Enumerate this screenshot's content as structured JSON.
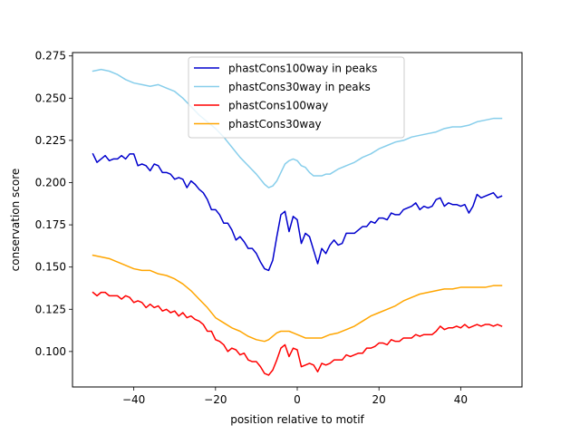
{
  "chart_data": {
    "type": "line",
    "xlabel": "position relative to motif",
    "ylabel": "conservation score",
    "xlim": [
      -55,
      55
    ],
    "ylim": [
      0.079,
      0.277
    ],
    "x_ticks": [
      -40,
      -20,
      0,
      20,
      40
    ],
    "x_tick_labels": [
      "−40",
      "−20",
      "0",
      "20",
      "40"
    ],
    "y_ticks": [
      0.1,
      0.125,
      0.15,
      0.175,
      0.2,
      0.225,
      0.25,
      0.275
    ],
    "y_tick_labels": [
      "0.100",
      "0.125",
      "0.150",
      "0.175",
      "0.200",
      "0.225",
      "0.250",
      "0.275"
    ],
    "legend_position": "upper-center",
    "series": [
      {
        "name": "phastCons100way in peaks",
        "color": "#0000cd",
        "x": [
          -50,
          -49,
          -48,
          -47,
          -46,
          -45,
          -44,
          -43,
          -42,
          -41,
          -40,
          -39,
          -38,
          -37,
          -36,
          -35,
          -34,
          -33,
          -32,
          -31,
          -30,
          -29,
          -28,
          -27,
          -26,
          -25,
          -24,
          -23,
          -22,
          -21,
          -20,
          -19,
          -18,
          -17,
          -16,
          -15,
          -14,
          -13,
          -12,
          -11,
          -10,
          -9,
          -8,
          -7,
          -6,
          -5,
          -4,
          -3,
          -2,
          -1,
          0,
          1,
          2,
          3,
          4,
          5,
          6,
          7,
          8,
          9,
          10,
          11,
          12,
          13,
          14,
          15,
          16,
          17,
          18,
          19,
          20,
          21,
          22,
          23,
          24,
          25,
          26,
          27,
          28,
          29,
          30,
          31,
          32,
          33,
          34,
          35,
          36,
          37,
          38,
          39,
          40,
          41,
          42,
          43,
          44,
          45,
          46,
          47,
          48,
          49,
          50
        ],
        "values": [
          0.217,
          0.212,
          0.214,
          0.216,
          0.213,
          0.214,
          0.214,
          0.216,
          0.214,
          0.217,
          0.217,
          0.21,
          0.211,
          0.21,
          0.207,
          0.211,
          0.21,
          0.206,
          0.206,
          0.205,
          0.202,
          0.203,
          0.202,
          0.197,
          0.201,
          0.199,
          0.196,
          0.194,
          0.19,
          0.184,
          0.184,
          0.181,
          0.176,
          0.176,
          0.172,
          0.166,
          0.168,
          0.165,
          0.161,
          0.161,
          0.158,
          0.153,
          0.149,
          0.148,
          0.154,
          0.168,
          0.181,
          0.183,
          0.171,
          0.18,
          0.178,
          0.164,
          0.17,
          0.168,
          0.16,
          0.152,
          0.161,
          0.158,
          0.163,
          0.166,
          0.163,
          0.164,
          0.17,
          0.17,
          0.17,
          0.172,
          0.174,
          0.174,
          0.177,
          0.176,
          0.179,
          0.179,
          0.178,
          0.182,
          0.181,
          0.181,
          0.184,
          0.185,
          0.186,
          0.188,
          0.184,
          0.186,
          0.185,
          0.186,
          0.19,
          0.191,
          0.186,
          0.188,
          0.187,
          0.187,
          0.186,
          0.187,
          0.182,
          0.186,
          0.193,
          0.191,
          0.192,
          0.193,
          0.194,
          0.191,
          0.192
        ]
      },
      {
        "name": "phastCons30way in peaks",
        "color": "#87ceeb",
        "x": [
          -50,
          -48,
          -46,
          -44,
          -42,
          -40,
          -38,
          -36,
          -34,
          -32,
          -30,
          -28,
          -26,
          -24,
          -22,
          -20,
          -18,
          -16,
          -14,
          -12,
          -10,
          -8,
          -7,
          -6,
          -5,
          -4,
          -3,
          -2,
          -1,
          0,
          1,
          2,
          3,
          4,
          5,
          6,
          7,
          8,
          10,
          12,
          14,
          16,
          18,
          20,
          22,
          24,
          26,
          28,
          30,
          32,
          34,
          36,
          38,
          40,
          42,
          44,
          46,
          48,
          50
        ],
        "values": [
          0.266,
          0.267,
          0.266,
          0.264,
          0.261,
          0.259,
          0.258,
          0.257,
          0.258,
          0.256,
          0.254,
          0.25,
          0.245,
          0.24,
          0.236,
          0.232,
          0.227,
          0.221,
          0.215,
          0.21,
          0.205,
          0.199,
          0.197,
          0.198,
          0.201,
          0.206,
          0.211,
          0.213,
          0.214,
          0.213,
          0.21,
          0.209,
          0.206,
          0.204,
          0.204,
          0.204,
          0.205,
          0.205,
          0.208,
          0.21,
          0.212,
          0.215,
          0.217,
          0.22,
          0.222,
          0.224,
          0.225,
          0.227,
          0.228,
          0.229,
          0.23,
          0.232,
          0.233,
          0.233,
          0.234,
          0.236,
          0.237,
          0.238,
          0.238
        ]
      },
      {
        "name": "phastCons100way",
        "color": "#ff0000",
        "x": [
          -50,
          -49,
          -48,
          -47,
          -46,
          -45,
          -44,
          -43,
          -42,
          -41,
          -40,
          -39,
          -38,
          -37,
          -36,
          -35,
          -34,
          -33,
          -32,
          -31,
          -30,
          -29,
          -28,
          -27,
          -26,
          -25,
          -24,
          -23,
          -22,
          -21,
          -20,
          -19,
          -18,
          -17,
          -16,
          -15,
          -14,
          -13,
          -12,
          -11,
          -10,
          -9,
          -8,
          -7,
          -6,
          -5,
          -4,
          -3,
          -2,
          -1,
          0,
          1,
          2,
          3,
          4,
          5,
          6,
          7,
          8,
          9,
          10,
          11,
          12,
          13,
          14,
          15,
          16,
          17,
          18,
          19,
          20,
          21,
          22,
          23,
          24,
          25,
          26,
          27,
          28,
          29,
          30,
          31,
          32,
          33,
          34,
          35,
          36,
          37,
          38,
          39,
          40,
          41,
          42,
          43,
          44,
          45,
          46,
          47,
          48,
          49,
          50
        ],
        "values": [
          0.135,
          0.133,
          0.135,
          0.135,
          0.133,
          0.133,
          0.133,
          0.131,
          0.133,
          0.132,
          0.129,
          0.13,
          0.129,
          0.126,
          0.128,
          0.126,
          0.127,
          0.124,
          0.125,
          0.123,
          0.124,
          0.121,
          0.123,
          0.12,
          0.121,
          0.119,
          0.118,
          0.116,
          0.112,
          0.112,
          0.107,
          0.106,
          0.104,
          0.1,
          0.102,
          0.101,
          0.098,
          0.099,
          0.095,
          0.094,
          0.094,
          0.091,
          0.087,
          0.086,
          0.089,
          0.095,
          0.102,
          0.104,
          0.097,
          0.102,
          0.101,
          0.091,
          0.092,
          0.093,
          0.092,
          0.088,
          0.093,
          0.092,
          0.093,
          0.095,
          0.095,
          0.095,
          0.098,
          0.097,
          0.098,
          0.099,
          0.099,
          0.102,
          0.102,
          0.103,
          0.105,
          0.105,
          0.104,
          0.107,
          0.106,
          0.106,
          0.108,
          0.108,
          0.108,
          0.11,
          0.109,
          0.11,
          0.11,
          0.11,
          0.112,
          0.115,
          0.113,
          0.114,
          0.114,
          0.115,
          0.114,
          0.116,
          0.114,
          0.115,
          0.116,
          0.115,
          0.116,
          0.116,
          0.115,
          0.116,
          0.115
        ]
      },
      {
        "name": "phastCons30way",
        "color": "#ffa500",
        "x": [
          -50,
          -48,
          -46,
          -44,
          -42,
          -40,
          -38,
          -36,
          -34,
          -32,
          -30,
          -28,
          -26,
          -24,
          -22,
          -20,
          -18,
          -16,
          -14,
          -12,
          -10,
          -8,
          -7,
          -6,
          -5,
          -4,
          -3,
          -2,
          -1,
          0,
          1,
          2,
          3,
          4,
          5,
          6,
          7,
          8,
          10,
          12,
          14,
          16,
          18,
          20,
          22,
          24,
          26,
          28,
          30,
          32,
          34,
          36,
          38,
          40,
          42,
          44,
          46,
          48,
          50
        ],
        "values": [
          0.157,
          0.156,
          0.155,
          0.153,
          0.151,
          0.149,
          0.148,
          0.148,
          0.146,
          0.145,
          0.143,
          0.14,
          0.136,
          0.131,
          0.126,
          0.12,
          0.117,
          0.114,
          0.112,
          0.109,
          0.107,
          0.106,
          0.107,
          0.109,
          0.111,
          0.112,
          0.112,
          0.112,
          0.111,
          0.11,
          0.109,
          0.108,
          0.108,
          0.108,
          0.108,
          0.108,
          0.109,
          0.11,
          0.111,
          0.113,
          0.115,
          0.118,
          0.121,
          0.123,
          0.125,
          0.127,
          0.13,
          0.132,
          0.134,
          0.135,
          0.136,
          0.137,
          0.137,
          0.138,
          0.138,
          0.138,
          0.138,
          0.139,
          0.139
        ]
      }
    ]
  }
}
